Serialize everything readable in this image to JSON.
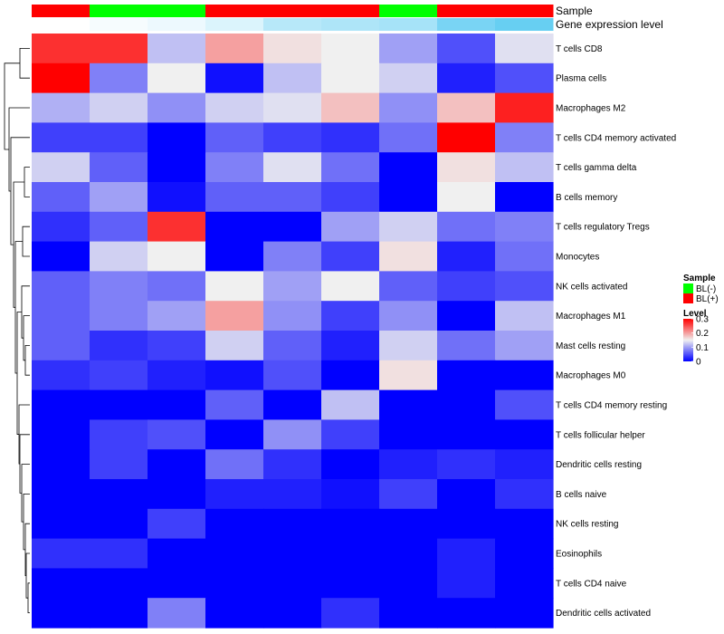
{
  "chart_data": {
    "type": "heatmap",
    "title": "",
    "annotation_titles": [
      "Sample",
      "Gene expression level"
    ],
    "rows": [
      "T cells CD8",
      "Plasma cells",
      "Macrophages M2",
      "T cells CD4 memory activated",
      "T cells gamma delta",
      "B cells memory",
      "T cells regulatory  Tregs",
      "Monocytes",
      "NK cells activated",
      "Macrophages M1",
      "Mast cells resting",
      "Macrophages M0",
      "T cells CD4 memory resting",
      "T cells follicular helper",
      "Dendritic cells resting",
      "B cells naive",
      "NK cells resting",
      "Eosinophils",
      "T cells CD4 naive",
      "Dendritic cells activated"
    ],
    "sample_groups": [
      "BL(+)",
      "BL(-)",
      "BL(-)",
      "BL(+)",
      "BL(+)",
      "BL(+)",
      "BL(-)",
      "BL(+)",
      "BL(+)"
    ],
    "gene_expression_level": [
      0.0,
      0.05,
      0.1,
      0.2,
      0.4,
      0.45,
      0.5,
      0.75,
      0.85
    ],
    "values": [
      [
        0.27,
        0.27,
        0.12,
        0.2,
        0.16,
        0.15,
        0.1,
        0.05,
        0.14
      ],
      [
        0.3,
        0.08,
        0.15,
        0.01,
        0.12,
        0.15,
        0.13,
        0.02,
        0.05
      ],
      [
        0.11,
        0.13,
        0.09,
        0.13,
        0.14,
        0.18,
        0.09,
        0.18,
        0.28
      ],
      [
        0.04,
        0.04,
        0.0,
        0.06,
        0.04,
        0.03,
        0.07,
        0.3,
        0.08
      ],
      [
        0.13,
        0.06,
        0.0,
        0.08,
        0.14,
        0.07,
        0.0,
        0.16,
        0.12
      ],
      [
        0.06,
        0.1,
        0.01,
        0.06,
        0.06,
        0.04,
        0.0,
        0.15,
        0.0
      ],
      [
        0.03,
        0.06,
        0.27,
        0.0,
        0.0,
        0.1,
        0.13,
        0.07,
        0.08
      ],
      [
        0.0,
        0.13,
        0.15,
        0.0,
        0.08,
        0.04,
        0.16,
        0.02,
        0.07
      ],
      [
        0.06,
        0.08,
        0.07,
        0.15,
        0.1,
        0.15,
        0.06,
        0.04,
        0.05
      ],
      [
        0.06,
        0.08,
        0.1,
        0.2,
        0.09,
        0.04,
        0.09,
        0.0,
        0.12
      ],
      [
        0.06,
        0.03,
        0.04,
        0.13,
        0.06,
        0.02,
        0.13,
        0.07,
        0.1
      ],
      [
        0.03,
        0.04,
        0.02,
        0.01,
        0.05,
        0.0,
        0.16,
        0.0,
        0.0
      ],
      [
        0.0,
        0.0,
        0.0,
        0.06,
        0.0,
        0.12,
        0.0,
        0.0,
        0.05
      ],
      [
        0.0,
        0.04,
        0.05,
        0.0,
        0.09,
        0.04,
        0.0,
        0.0,
        0.0
      ],
      [
        0.0,
        0.04,
        0.0,
        0.07,
        0.03,
        0.0,
        0.02,
        0.03,
        0.02
      ],
      [
        0.0,
        0.0,
        0.0,
        0.02,
        0.02,
        0.01,
        0.04,
        0.0,
        0.03
      ],
      [
        0.0,
        0.0,
        0.04,
        0.0,
        0.0,
        0.0,
        0.0,
        0.0,
        0.0
      ],
      [
        0.03,
        0.03,
        0.0,
        0.0,
        0.0,
        0.0,
        0.0,
        0.02,
        0.0
      ],
      [
        0.0,
        0.0,
        0.0,
        0.0,
        0.0,
        0.0,
        0.0,
        0.02,
        0.0
      ],
      [
        0.0,
        0.0,
        0.08,
        0.0,
        0.0,
        0.03,
        0.0,
        0.0,
        0.0
      ]
    ],
    "color_scale": {
      "low": "#0000ff",
      "mid": "#f0f0f0",
      "high": "#ff0000",
      "range": [
        0,
        0.3
      ]
    },
    "legends": {
      "sample": {
        "title": "Sample",
        "items": [
          {
            "label": "BL(-)",
            "color": "#00ff00"
          },
          {
            "label": "BL(+)",
            "color": "#ff0000"
          }
        ]
      },
      "level": {
        "title": "Level",
        "ticks": [
          "0.3",
          "0.2",
          "0.1",
          "0"
        ],
        "tick_values": [
          0.3,
          0.2,
          0.1,
          0
        ]
      }
    },
    "sample_colors": {
      "BL(-)": "#00ff00",
      "BL(+)": "#ff0000"
    },
    "expression_colors": {
      "low": "#ffffff",
      "high": "#4cc6f0"
    },
    "dendrogram": "row clustering tree"
  }
}
